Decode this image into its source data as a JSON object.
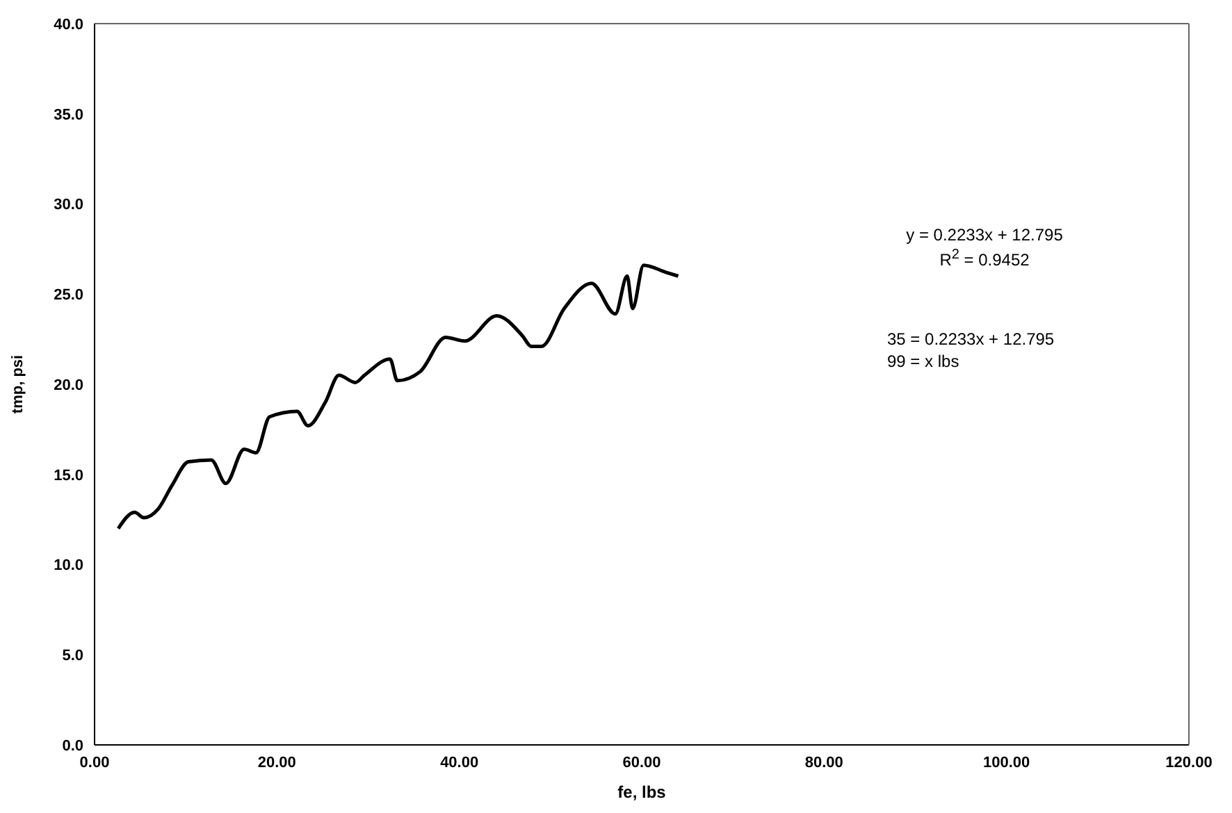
{
  "chart_data": {
    "type": "line",
    "xlabel": "fe, lbs",
    "ylabel": "tmp, psi",
    "xlim": [
      0,
      120
    ],
    "xticks": [
      {
        "value": 0,
        "label": "0.00"
      },
      {
        "value": 20,
        "label": "20.00"
      },
      {
        "value": 40,
        "label": "40.00"
      },
      {
        "value": 60,
        "label": "60.00"
      },
      {
        "value": 80,
        "label": "80.00"
      },
      {
        "value": 100,
        "label": "100.00"
      },
      {
        "value": 120,
        "label": "120.00"
      }
    ],
    "ylim": [
      0,
      40
    ],
    "yticks": [
      {
        "value": 0,
        "label": "0.0"
      },
      {
        "value": 5,
        "label": "5.0"
      },
      {
        "value": 10,
        "label": "10.0"
      },
      {
        "value": 15,
        "label": "15.0"
      },
      {
        "value": 20,
        "label": "20.0"
      },
      {
        "value": 25,
        "label": "25.0"
      },
      {
        "value": 30,
        "label": "30.0"
      },
      {
        "value": 35,
        "label": "35.0"
      },
      {
        "value": 40,
        "label": "40.0"
      }
    ],
    "series": [
      {
        "color": "#000000",
        "x": [
          2.6,
          4.4,
          5.4,
          7.0,
          8.5,
          10.3,
          12.8,
          14.4,
          16.4,
          17.7,
          19.2,
          22.2,
          23.4,
          25.3,
          26.8,
          28.6,
          29.6,
          32.4,
          33.2,
          35.7,
          38.5,
          40.6,
          44.1,
          46.9,
          47.9,
          49.0,
          51.5,
          54.5,
          57.1,
          58.4,
          59.0,
          60.2,
          62.7,
          64.0
        ],
        "values": [
          12.0,
          12.9,
          12.6,
          13.1,
          14.4,
          15.7,
          15.8,
          14.5,
          16.4,
          16.2,
          18.2,
          18.5,
          17.7,
          19.0,
          20.5,
          20.1,
          20.5,
          21.4,
          20.2,
          20.7,
          22.6,
          22.4,
          23.8,
          22.7,
          22.1,
          22.1,
          24.2,
          25.6,
          23.9,
          26.0,
          24.2,
          26.6,
          26.2,
          26.0
        ]
      }
    ],
    "annotations": [
      "y = 0.2233x + 12.795",
      "R$^{2}$ = 0.9452",
      "35 = 0.2233x + 12.795",
      "99 = x lbs"
    ]
  }
}
